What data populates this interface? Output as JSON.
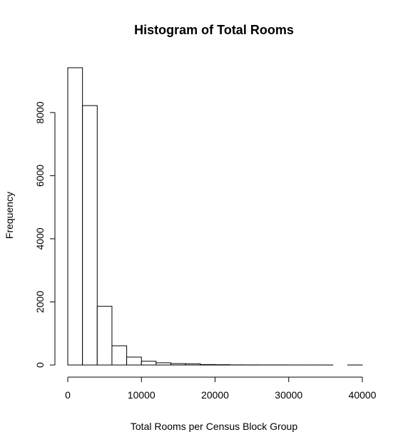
{
  "chart_data": {
    "type": "bar",
    "title": "Histogram of Total Rooms",
    "xlabel": "Total Rooms per Census Block Group",
    "ylabel": "Frequency",
    "bin_width": 2000,
    "bins": [
      {
        "start": 0,
        "end": 2000,
        "count": 9420
      },
      {
        "start": 2000,
        "end": 4000,
        "count": 8220
      },
      {
        "start": 4000,
        "end": 6000,
        "count": 1860
      },
      {
        "start": 6000,
        "end": 8000,
        "count": 610
      },
      {
        "start": 8000,
        "end": 10000,
        "count": 250
      },
      {
        "start": 10000,
        "end": 12000,
        "count": 120
      },
      {
        "start": 12000,
        "end": 14000,
        "count": 70
      },
      {
        "start": 14000,
        "end": 16000,
        "count": 45
      },
      {
        "start": 16000,
        "end": 18000,
        "count": 40
      },
      {
        "start": 18000,
        "end": 20000,
        "count": 15
      },
      {
        "start": 20000,
        "end": 22000,
        "count": 10
      },
      {
        "start": 22000,
        "end": 24000,
        "count": 4
      },
      {
        "start": 24000,
        "end": 26000,
        "count": 3
      },
      {
        "start": 26000,
        "end": 28000,
        "count": 2
      },
      {
        "start": 28000,
        "end": 30000,
        "count": 2
      },
      {
        "start": 30000,
        "end": 32000,
        "count": 1
      },
      {
        "start": 32000,
        "end": 34000,
        "count": 1
      },
      {
        "start": 34000,
        "end": 36000,
        "count": 1
      },
      {
        "start": 36000,
        "end": 38000,
        "count": 0
      },
      {
        "start": 38000,
        "end": 40000,
        "count": 1
      }
    ],
    "xlim": [
      0,
      40000
    ],
    "ylim": [
      0,
      9420
    ],
    "xticks": [
      0,
      10000,
      20000,
      30000,
      40000
    ],
    "yticks": [
      0,
      2000,
      4000,
      6000,
      8000
    ],
    "grid": false
  }
}
